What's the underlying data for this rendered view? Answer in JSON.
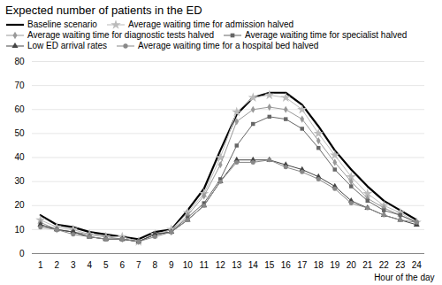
{
  "chart_data": {
    "type": "line",
    "title": "Expected number of patients in the ED",
    "xlabel": "Hour of the day",
    "x": [
      1,
      2,
      3,
      4,
      5,
      6,
      7,
      8,
      9,
      10,
      11,
      12,
      13,
      14,
      15,
      16,
      17,
      18,
      19,
      20,
      21,
      22,
      23,
      24
    ],
    "series": [
      {
        "name": "Baseline scenario",
        "color": "#000000",
        "values": [
          16,
          12,
          11,
          9,
          8,
          7,
          6,
          9,
          10,
          18,
          27,
          43,
          58,
          65,
          67,
          67,
          62,
          53,
          43,
          35,
          28,
          22,
          18,
          14
        ]
      },
      {
        "name": "Average waiting time for admission halved",
        "color": "#bbbbbb",
        "marker": "star",
        "values": [
          14,
          11,
          10,
          8,
          7,
          7,
          5,
          8,
          10,
          17,
          25,
          40,
          59,
          65,
          66,
          65,
          60,
          50,
          41,
          32,
          25,
          20,
          17,
          13
        ]
      },
      {
        "name": "Average waiting time for diagnostic tests halved",
        "color": "#999999",
        "marker": "diamond",
        "values": [
          13,
          10,
          9,
          8,
          7,
          6,
          5,
          8,
          9,
          16,
          24,
          37,
          55,
          60,
          61,
          60,
          56,
          47,
          38,
          30,
          23,
          19,
          16,
          13
        ]
      },
      {
        "name": "Average waiting time for specialist halved",
        "color": "#666666",
        "marker": "square",
        "values": [
          12,
          10,
          9,
          7,
          6,
          6,
          5,
          8,
          9,
          15,
          21,
          31,
          45,
          54,
          57,
          56,
          52,
          44,
          35,
          28,
          22,
          18,
          16,
          13
        ]
      },
      {
        "name": "Low ED arrival rates",
        "color": "#444444",
        "marker": "triangle",
        "values": [
          12,
          10,
          9,
          7,
          6,
          6,
          5,
          8,
          9,
          14,
          20,
          30,
          39,
          39,
          39,
          37,
          35,
          32,
          28,
          22,
          19,
          16,
          14,
          12
        ]
      },
      {
        "name": "Average waiting time for a hospital bed halved",
        "color": "#888888",
        "marker": "circle",
        "values": [
          11,
          10,
          8,
          7,
          6,
          6,
          5,
          7,
          9,
          14,
          20,
          30,
          38,
          38,
          39,
          36,
          34,
          31,
          27,
          21,
          19,
          16,
          14,
          13
        ]
      }
    ],
    "xlim": [
      0.5,
      24.5
    ],
    "xticks": [
      1,
      2,
      3,
      4,
      5,
      6,
      7,
      8,
      9,
      10,
      11,
      12,
      13,
      14,
      15,
      16,
      17,
      18,
      19,
      20,
      21,
      22,
      23,
      24
    ],
    "ylim": [
      0,
      80
    ],
    "yticks": [
      0,
      10,
      20,
      30,
      40,
      50,
      60,
      70,
      80
    ],
    "grid": true,
    "legend": "upper left"
  }
}
